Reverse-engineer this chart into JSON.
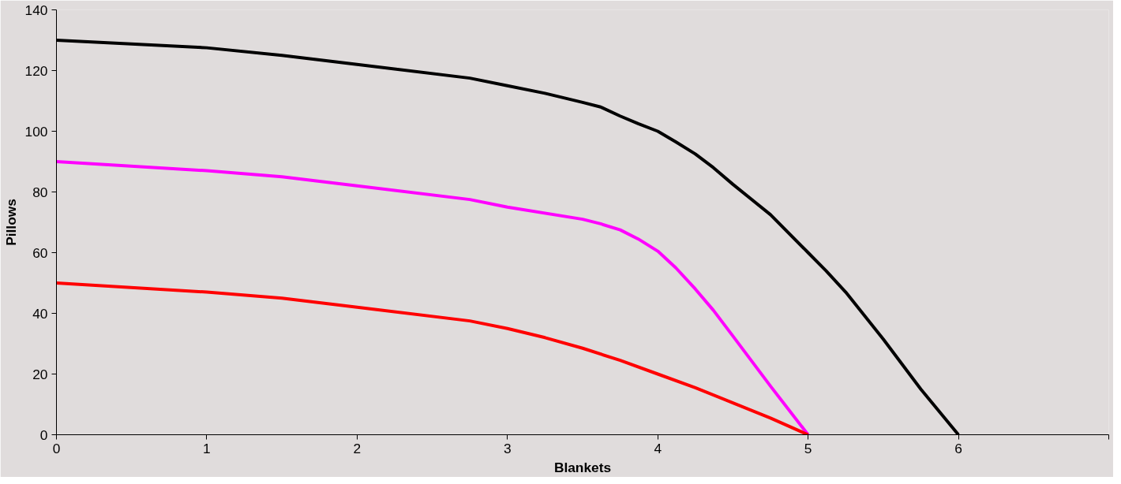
{
  "chart_data": {
    "type": "line",
    "xlabel": "Blankets",
    "ylabel": "Pillows",
    "xlim": [
      0,
      7
    ],
    "ylim": [
      0,
      140
    ],
    "xticks": [
      0,
      1,
      2,
      3,
      4,
      5,
      6,
      {
        "value": 7,
        "label": null
      }
    ],
    "yticks": [
      0,
      20,
      40,
      60,
      80,
      100,
      120,
      140
    ],
    "grid": false,
    "marker": "none",
    "line_style": "solid",
    "series": [
      {
        "color": "#000000",
        "x": [
          0,
          1,
          1.5,
          2,
          2.75,
          3,
          3.25,
          3.5,
          3.62,
          3.75,
          3.87,
          4,
          4.12,
          4.25,
          4.37,
          4.5,
          4.75,
          5,
          5.12,
          5.25,
          5.5,
          5.75,
          6
        ],
        "values": [
          130,
          127.5,
          125,
          122,
          117.5,
          115,
          112.5,
          109.5,
          108,
          105,
          102.5,
          100,
          96.5,
          92.5,
          88,
          82.5,
          72.5,
          60,
          54,
          47,
          31.5,
          15,
          0
        ]
      },
      {
        "color": "#ff00ff",
        "x": [
          0,
          1,
          1.5,
          2,
          2.75,
          3,
          3.5,
          3.62,
          3.75,
          3.87,
          4,
          4.12,
          4.25,
          4.37,
          4.5,
          4.75,
          5
        ],
        "values": [
          90,
          87,
          85,
          82,
          77.5,
          75,
          71,
          69.5,
          67.5,
          64.5,
          60.5,
          55,
          48,
          41,
          32.5,
          16,
          0
        ]
      },
      {
        "color": "#ff0000",
        "x": [
          0,
          1,
          1.5,
          2,
          2.75,
          3,
          3.25,
          3.5,
          3.75,
          4,
          4.25,
          4.5,
          4.75,
          5
        ],
        "values": [
          50,
          47,
          45,
          42,
          37.5,
          35,
          32,
          28.5,
          24.5,
          20,
          15.5,
          10.5,
          5.5,
          0
        ]
      }
    ]
  }
}
